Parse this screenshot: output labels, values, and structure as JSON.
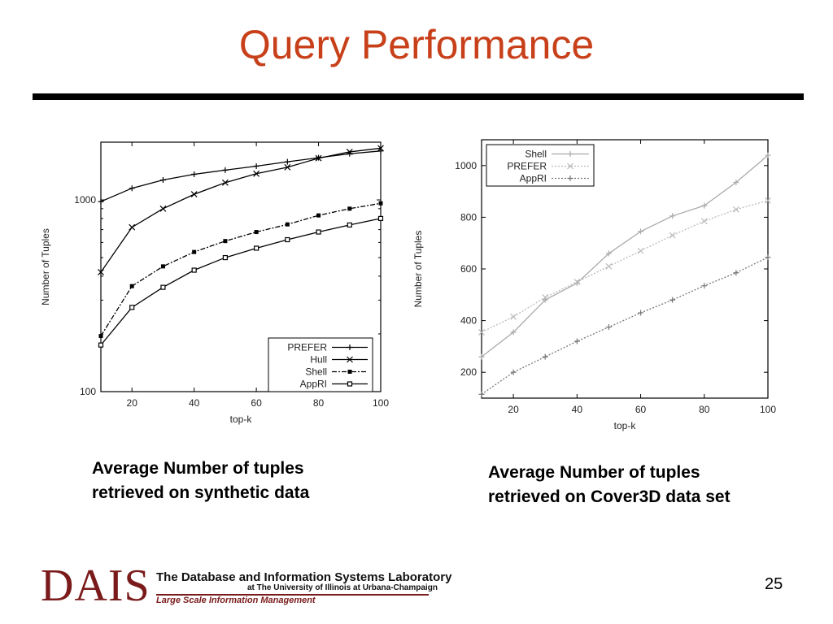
{
  "slide": {
    "title": "Query Performance",
    "page_number": "25"
  },
  "captions": {
    "left_line1": "Average Number of tuples",
    "left_line2": "retrieved on synthetic data",
    "right_line1": "Average Number of tuples",
    "right_line2": "retrieved on Cover3D data set"
  },
  "footer": {
    "logo": "DAIS",
    "lab_name": "The Database and Information Systems Laboratory",
    "lab_sub": "at The University of Illinois at Urbana-Champaign",
    "tagline": "Large Scale Information Management",
    "accent_color": "#7a1a1a"
  },
  "colors": {
    "title": "#c8401a"
  },
  "chart_data": [
    {
      "type": "line",
      "xlabel": "top-k",
      "ylabel": "Number of Tuples",
      "yscale": "log",
      "xlim": [
        10,
        100
      ],
      "ylim": [
        100,
        2000
      ],
      "xticks": [
        20,
        40,
        60,
        80,
        100
      ],
      "yticks": [
        100,
        1000
      ],
      "legend": "bottom-right",
      "x": [
        10,
        20,
        30,
        40,
        50,
        60,
        70,
        80,
        90,
        100
      ],
      "series": [
        {
          "name": "PREFER",
          "marker": "plus",
          "dash": "solid",
          "values": [
            980,
            1150,
            1270,
            1360,
            1430,
            1500,
            1580,
            1660,
            1740,
            1800
          ]
        },
        {
          "name": "Hull",
          "marker": "cross",
          "dash": "solid",
          "values": [
            420,
            720,
            900,
            1070,
            1230,
            1370,
            1480,
            1650,
            1780,
            1860
          ]
        },
        {
          "name": "Shell",
          "marker": "filled-square",
          "dash": "dashdot",
          "values": [
            195,
            355,
            450,
            535,
            610,
            680,
            745,
            830,
            900,
            960
          ]
        },
        {
          "name": "AppRI",
          "marker": "open-square",
          "dash": "solid",
          "values": [
            175,
            275,
            350,
            430,
            500,
            560,
            620,
            680,
            740,
            800
          ]
        }
      ]
    },
    {
      "type": "line",
      "xlabel": "top-k",
      "ylabel": "Number of Tuples",
      "xlim": [
        10,
        100
      ],
      "ylim": [
        100,
        1100
      ],
      "xticks": [
        20,
        40,
        60,
        80,
        100
      ],
      "yticks": [
        200,
        400,
        600,
        800,
        1000
      ],
      "legend": "top-left",
      "x": [
        10,
        20,
        30,
        40,
        50,
        60,
        70,
        80,
        90,
        100
      ],
      "series": [
        {
          "name": "Shell",
          "marker": "plus",
          "dash": "solid",
          "values": [
            260,
            355,
            480,
            545,
            660,
            745,
            805,
            845,
            935,
            1040
          ]
        },
        {
          "name": "PREFER",
          "marker": "cross",
          "dash": "dotted",
          "values": [
            355,
            415,
            490,
            550,
            610,
            670,
            730,
            785,
            830,
            865
          ]
        },
        {
          "name": "AppRI",
          "marker": "plus",
          "dash": "dotted",
          "values": [
            115,
            200,
            260,
            320,
            375,
            430,
            480,
            535,
            585,
            645
          ]
        }
      ]
    }
  ]
}
